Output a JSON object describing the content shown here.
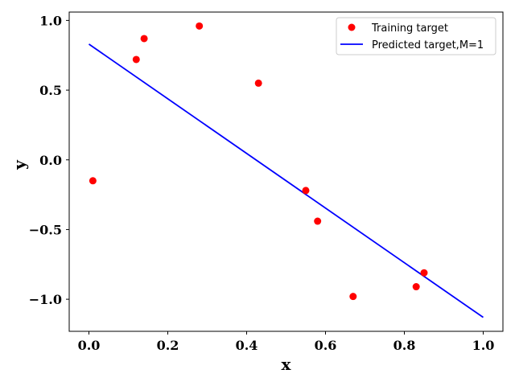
{
  "chart_data": {
    "type": "scatter",
    "title": "",
    "xlabel": "x",
    "ylabel": "y",
    "xlim": [
      -0.05,
      1.05
    ],
    "ylim": [
      -1.23,
      1.06
    ],
    "x_ticks": [
      0.0,
      0.2,
      0.4,
      0.6,
      0.8,
      1.0
    ],
    "x_tick_labels": [
      "0.0",
      "0.2",
      "0.4",
      "0.6",
      "0.8",
      "1.0"
    ],
    "y_ticks": [
      1.0,
      0.5,
      0.0,
      -0.5,
      -1.0
    ],
    "y_tick_labels": [
      "1.0",
      "0.5",
      "0.0",
      "−0.5",
      "−1.0"
    ],
    "grid": false,
    "legend_position": "top-right",
    "series": [
      {
        "name": "Training target",
        "kind": "points",
        "color": "#ff0000",
        "x": [
          0.01,
          0.12,
          0.14,
          0.28,
          0.43,
          0.55,
          0.58,
          0.67,
          0.83,
          0.85
        ],
        "y": [
          -0.15,
          0.72,
          0.87,
          0.96,
          0.55,
          -0.22,
          -0.44,
          -0.98,
          -0.91,
          -0.81
        ]
      },
      {
        "name": "Predicted target,M=1",
        "kind": "line",
        "color": "#0000ff",
        "x": [
          0.0,
          1.0
        ],
        "y": [
          0.83,
          -1.13
        ]
      }
    ]
  }
}
